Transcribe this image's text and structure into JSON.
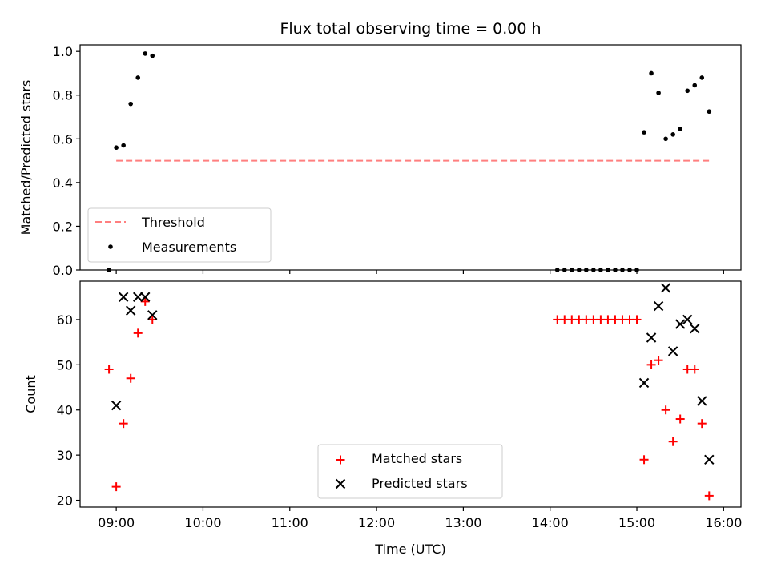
{
  "chart_data": [
    {
      "type": "scatter",
      "title": "Flux total observing time = 0.00 h",
      "xlabel": "",
      "ylabel": "Matched/Predicted stars",
      "xlim": [
        "08:35",
        "16:12"
      ],
      "ylim": [
        0,
        1.03
      ],
      "yticks": [
        0.0,
        0.2,
        0.4,
        0.6,
        0.8,
        1.0
      ],
      "ytick_labels": [
        "0.0",
        "0.2",
        "0.4",
        "0.6",
        "0.8",
        "1.0"
      ],
      "legend": "lower-left",
      "series": [
        {
          "name": "Threshold",
          "style": "dashed-line",
          "color": "#ff7f7f",
          "x": [
            "09:00",
            "15:50"
          ],
          "y": [
            0.5,
            0.5
          ]
        },
        {
          "name": "Measurements",
          "style": "dot",
          "color": "#000000",
          "x": [
            "08:55",
            "09:00",
            "09:05",
            "09:10",
            "09:15",
            "09:20",
            "09:25",
            "14:05",
            "14:10",
            "14:15",
            "14:20",
            "14:25",
            "14:30",
            "14:35",
            "14:40",
            "14:45",
            "14:50",
            "14:55",
            "15:00",
            "15:05",
            "15:10",
            "15:15",
            "15:20",
            "15:25",
            "15:30",
            "15:35",
            "15:40",
            "15:45",
            "15:50"
          ],
          "y": [
            0.0,
            0.56,
            0.57,
            0.76,
            0.88,
            0.99,
            0.98,
            0.0,
            0.0,
            0.0,
            0.0,
            0.0,
            0.0,
            0.0,
            0.0,
            0.0,
            0.0,
            0.0,
            0.0,
            0.63,
            0.9,
            0.81,
            0.6,
            0.62,
            0.645,
            0.82,
            0.845,
            0.88,
            0.725
          ]
        }
      ]
    },
    {
      "type": "scatter",
      "title": "",
      "xlabel": "Time (UTC)",
      "ylabel": "Count",
      "xlim": [
        "08:35",
        "16:12"
      ],
      "ylim": [
        18.5,
        68.5
      ],
      "yticks": [
        20,
        30,
        40,
        50,
        60
      ],
      "ytick_labels": [
        "20",
        "30",
        "40",
        "50",
        "60"
      ],
      "xticks": [
        "09:00",
        "10:00",
        "11:00",
        "12:00",
        "13:00",
        "14:00",
        "15:00",
        "16:00"
      ],
      "legend": "lower-center",
      "series": [
        {
          "name": "Matched stars",
          "style": "plus",
          "color": "#ff0000",
          "x": [
            "08:55",
            "09:00",
            "09:05",
            "09:10",
            "09:15",
            "09:20",
            "09:25",
            "14:05",
            "14:10",
            "14:15",
            "14:20",
            "14:25",
            "14:30",
            "14:35",
            "14:40",
            "14:45",
            "14:50",
            "14:55",
            "15:00",
            "15:05",
            "15:10",
            "15:15",
            "15:20",
            "15:25",
            "15:30",
            "15:35",
            "15:40",
            "15:45",
            "15:50"
          ],
          "y": [
            49,
            23,
            37,
            47,
            57,
            64,
            60,
            60,
            60,
            60,
            60,
            60,
            60,
            60,
            60,
            60,
            60,
            60,
            60,
            29,
            50,
            51,
            40,
            33,
            38,
            49,
            49,
            37,
            21
          ]
        },
        {
          "name": "Predicted stars",
          "style": "x",
          "color": "#000000",
          "x": [
            "09:00",
            "09:05",
            "09:10",
            "09:15",
            "09:20",
            "09:25",
            "15:05",
            "15:10",
            "15:15",
            "15:20",
            "15:25",
            "15:30",
            "15:35",
            "15:40",
            "15:45",
            "15:50"
          ],
          "y": [
            41,
            65,
            62,
            65,
            65,
            61,
            46,
            56,
            63,
            67,
            53,
            59,
            60,
            58,
            42,
            29
          ]
        }
      ]
    }
  ]
}
